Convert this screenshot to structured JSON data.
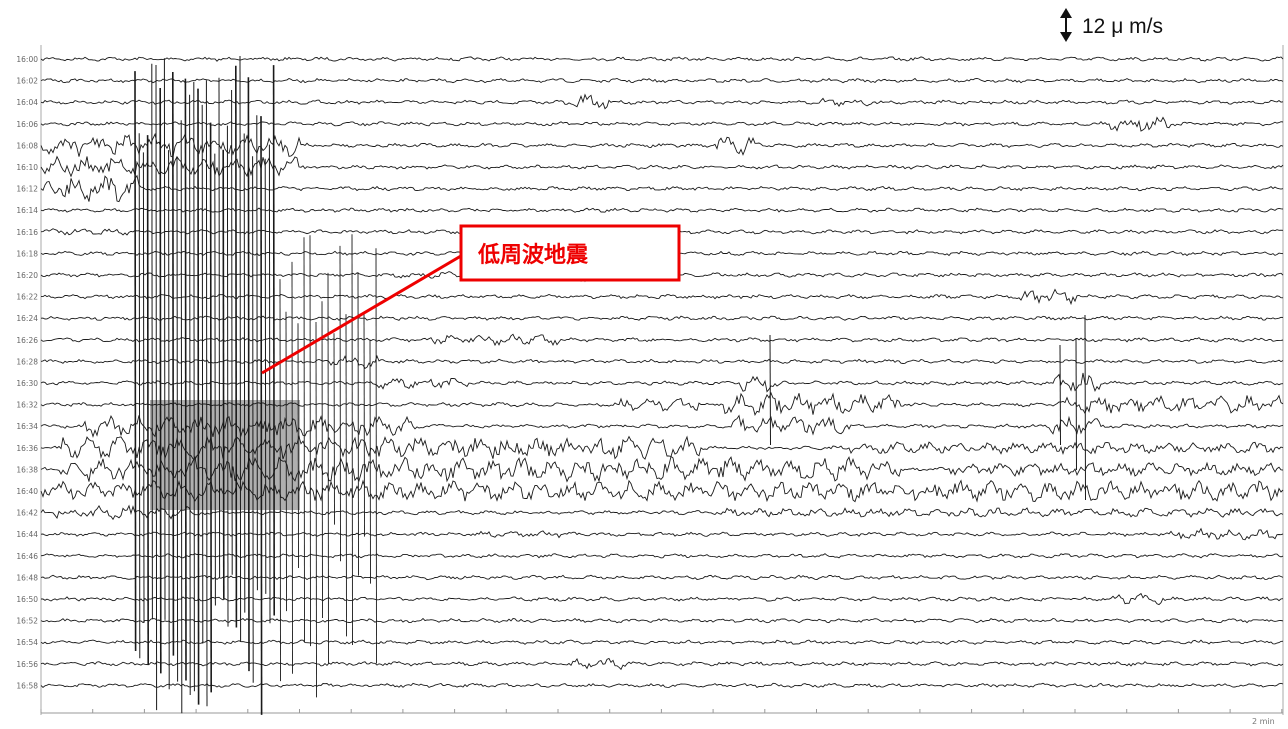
{
  "chart_data": {
    "type": "line",
    "scale": {
      "label": "12 μ m/s",
      "value": 12,
      "unit": "μ m/s"
    },
    "x_axis_label": "2 min",
    "start_time": "16:00",
    "end_time": "16:58",
    "row_interval_minutes": 2,
    "time_labels": [
      "16:00",
      "16:02",
      "16:04",
      "16:06",
      "16:08",
      "16:10",
      "16:12",
      "16:14",
      "16:16",
      "16:18",
      "16:20",
      "16:22",
      "16:24",
      "16:26",
      "16:28",
      "16:30",
      "16:32",
      "16:34",
      "16:36",
      "16:38",
      "16:40",
      "16:42",
      "16:44",
      "16:46",
      "16:48",
      "16:50",
      "16:52",
      "16:54",
      "16:56",
      "16:58"
    ],
    "annotation": {
      "label": "低周波地震"
    },
    "colors": {
      "trace": "#1a1a1a",
      "annotation": "#ee0000",
      "axis": "#999999"
    }
  }
}
